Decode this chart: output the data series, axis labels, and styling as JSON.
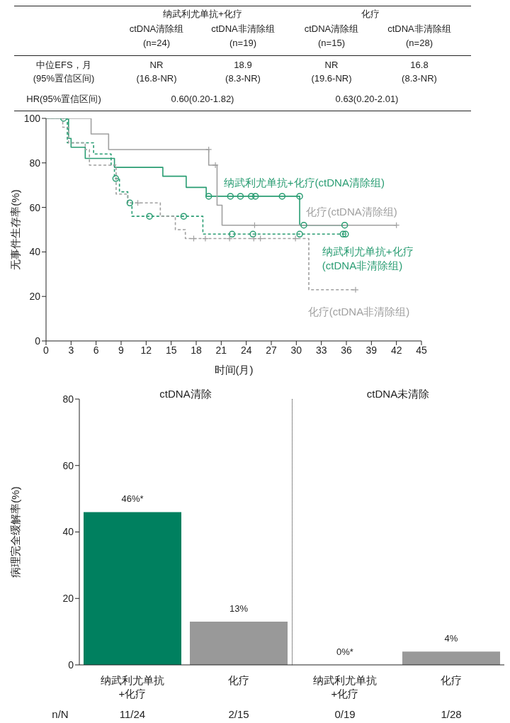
{
  "chart_data": [
    {
      "type": "other",
      "annotations": [
        "纳武利尤单抗+化疗",
        "化疗",
        "ctDNA清除组",
        "ctDNA非清除组",
        "ctDNA清除组",
        "ctDNA非清除组",
        "(n=24)",
        "(n=19)",
        "(n=15)",
        "(n=28)",
        "中位EFS，月",
        "(95%置信区间)",
        "NR",
        "18.9",
        "NR",
        "16.8",
        "(16.8-NR)",
        "(8.3-NR)",
        "(19.6-NR)",
        "(8.3-NR)",
        "HR(95%置信区间)",
        "0.60(0.20-1.82)",
        "0.63(0.20-2.01)"
      ]
    },
    {
      "type": "step",
      "xlabel": "时间(月)",
      "ylabel": "无事件生存率(%)",
      "xlim": [
        0,
        45
      ],
      "xticks": [
        0,
        3,
        6,
        9,
        12,
        15,
        18,
        21,
        24,
        27,
        30,
        33,
        36,
        39,
        42,
        45
      ],
      "ylim": [
        0,
        100
      ],
      "yticks": [
        0,
        20,
        40,
        60,
        80,
        100
      ],
      "legend": false,
      "series": [
        {
          "name": "纳武利尤单抗+化疗(ctDNA清除组)",
          "color": "#2a9d73",
          "line_style": "solid",
          "x": [
            0,
            2.7,
            3.0,
            4.7,
            8.2,
            14.0,
            16.8,
            19.2,
            30.4,
            35.8
          ],
          "values": [
            100,
            91,
            87,
            82,
            78,
            74,
            69,
            65,
            52,
            52
          ]
        },
        {
          "name": "化疗(ctDNA清除组)",
          "color": "#a0a0a0",
          "line_style": "solid",
          "x": [
            0,
            5.4,
            7.5,
            19.5,
            20.5,
            21.1,
            42
          ],
          "values": [
            100,
            93,
            86,
            79,
            61,
            52,
            52
          ]
        },
        {
          "name": "纳武利尤单抗+化疗(ctDNA非清除组)",
          "color": "#2a9d73",
          "line_style": "dashed",
          "x": [
            0,
            2.55,
            5.7,
            7.8,
            8.2,
            8.8,
            9.8,
            10.3,
            18.8,
            36
          ],
          "values": [
            100,
            89,
            84,
            79,
            73,
            67,
            62,
            56,
            48,
            48
          ]
        },
        {
          "name": "化疗(ctDNA非清除组)",
          "color": "#a0a0a0",
          "line_style": "dashed",
          "x": [
            0,
            2.0,
            2.7,
            4.7,
            5.2,
            8.4,
            9.8,
            13.7,
            15.5,
            16.7,
            31.5,
            37.1
          ],
          "values": [
            100,
            96,
            89,
            86,
            79,
            66,
            62,
            56,
            50,
            46,
            23,
            23
          ]
        },
        {
          "type": "scatter",
          "marker": "circle",
          "color": "#2a9d73",
          "x": [
            19.5,
            22.1,
            23.3,
            24.6,
            25.1,
            28.3,
            30.4,
            30.9,
            35.8
          ],
          "values": [
            65,
            65,
            65,
            65,
            65,
            65,
            65,
            52,
            52
          ]
        },
        {
          "type": "scatter",
          "marker": "cross",
          "color": "#a0a0a0",
          "x": [
            19.5,
            20.3,
            25,
            42
          ],
          "values": [
            86,
            79,
            52,
            52
          ]
        },
        {
          "type": "scatter",
          "marker": "circle",
          "color": "#2a9d73",
          "x": [
            2.1,
            8.35,
            10.05,
            12.4,
            16.5,
            22.3,
            24.8,
            30.4,
            35.6,
            35.9
          ],
          "values": [
            100,
            73,
            62,
            56,
            56,
            48,
            48,
            48,
            48,
            48
          ]
        },
        {
          "type": "scatter",
          "marker": "cross",
          "color": "#a0a0a0",
          "x": [
            11.0,
            17.7,
            19.1,
            22.0,
            24.9,
            25.7,
            29.9,
            37.1
          ],
          "values": [
            62,
            46,
            46,
            46,
            46,
            46,
            46,
            23
          ]
        }
      ]
    },
    {
      "type": "bar",
      "ylabel": "病理完全缓解率(%)",
      "categories": [
        "纳武利尤单抗+化疗",
        "化疗",
        "纳武利尤单抗+化疗",
        "化疗"
      ],
      "values": [
        46,
        13,
        0,
        4
      ],
      "colors": [
        "#00805f",
        "#999999",
        "#00805f",
        "#999999"
      ],
      "value_labels": [
        "46%*",
        "13%",
        "0%*",
        "4%"
      ],
      "ylim": [
        0,
        80
      ],
      "yticks": [
        0,
        20,
        40,
        60,
        80
      ],
      "annotations": [
        "ctDNA清除",
        "ctDNA未清除",
        "n/N",
        "11/24",
        "2/15",
        "0/19",
        "1/28"
      ]
    }
  ]
}
